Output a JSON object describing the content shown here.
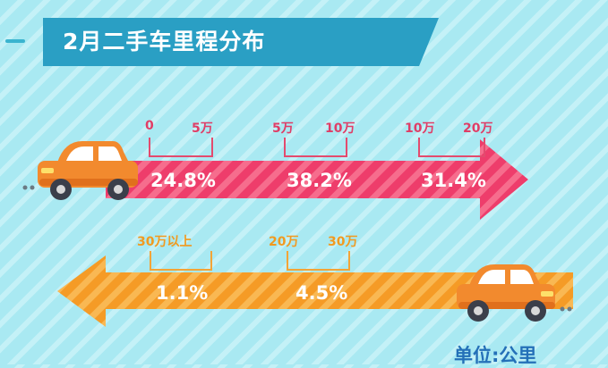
{
  "title": "2月二手车里程分布",
  "unit_label": "单位:公里",
  "top_arrow": {
    "ranges": [
      {
        "start": "0",
        "end": "5万",
        "percent": "24.8%"
      },
      {
        "start": "5万",
        "end": "10万",
        "percent": "38.2%"
      },
      {
        "start": "10万",
        "end": "20万",
        "percent": "31.4%"
      }
    ]
  },
  "bottom_arrow": {
    "ranges": [
      {
        "start": "30万以上",
        "end": "",
        "percent": "1.1%"
      },
      {
        "start": "20万",
        "end": "30万",
        "percent": "4.5%"
      }
    ]
  },
  "colors": {
    "pink_arrow": "#ee3d6b",
    "orange_arrow": "#f59b26",
    "title_band": "#2a9fc4",
    "car_body": "#f28a2e",
    "unit_text": "#2470b8"
  },
  "icons": [
    "car-icon",
    "arrow-right-icon",
    "arrow-left-icon"
  ]
}
